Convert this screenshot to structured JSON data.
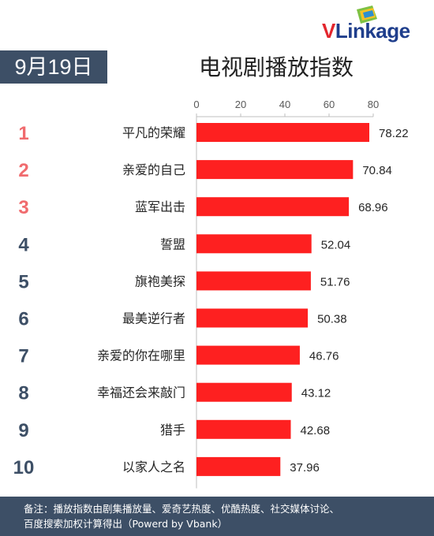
{
  "logo": {
    "brand_v": "V",
    "brand_rest": "Linkage"
  },
  "date": "9月19日",
  "chart_data": {
    "type": "bar",
    "orientation": "horizontal",
    "title": "电视剧播放指数",
    "ranks": [
      "1",
      "2",
      "3",
      "4",
      "5",
      "6",
      "7",
      "8",
      "9",
      "10"
    ],
    "categories": [
      "平凡的荣耀",
      "亲爱的自己",
      "蓝军出击",
      "誓盟",
      "旗袍美探",
      "最美逆行者",
      "亲爱的你在哪里",
      "幸福还会来敲门",
      "猎手",
      "以家人之名"
    ],
    "values": [
      78.22,
      70.84,
      68.96,
      52.04,
      51.76,
      50.38,
      46.76,
      43.12,
      42.68,
      37.96
    ],
    "value_labels": [
      "78.22",
      "70.84",
      "68.96",
      "52.04",
      "51.76",
      "50.38",
      "46.76",
      "43.12",
      "42.68",
      "37.96"
    ],
    "xticks": [
      "0",
      "20",
      "40",
      "60",
      "80"
    ],
    "xlim": [
      0,
      80
    ],
    "xaxis_position": "top",
    "grid": false,
    "colors": {
      "bar": "#fe2020",
      "rank_top3": "#f06b6e",
      "rank_other": "#3d4f66"
    }
  },
  "footer": {
    "line1": "备注：播放指数由剧集播放量、爱奇艺热度、优酷热度、社交媒体讨论、",
    "line2": "百度搜索加权计算得出（Powerd by Vbank）"
  }
}
